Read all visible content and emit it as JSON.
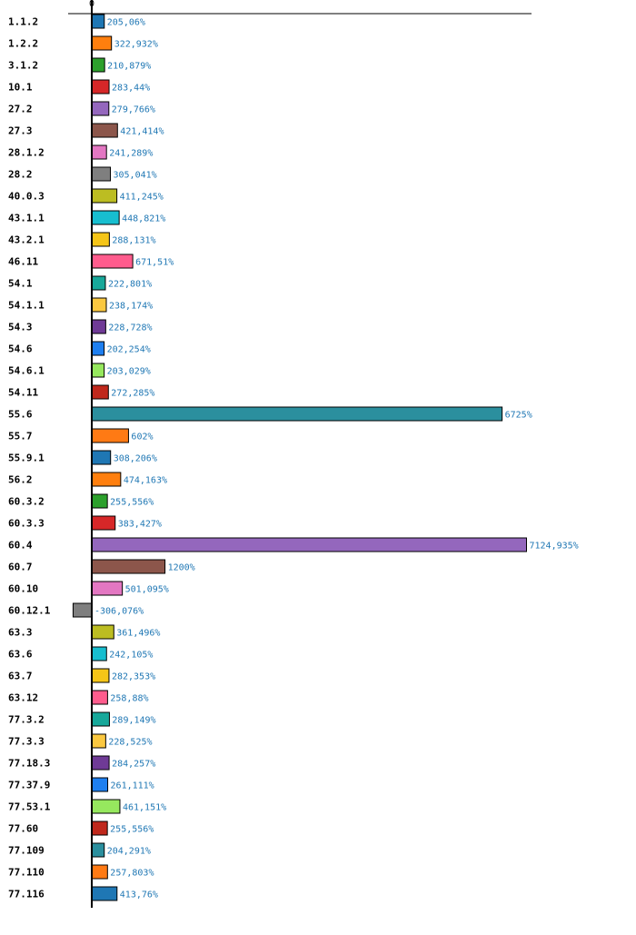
{
  "chart_data": {
    "type": "bar",
    "orientation": "horizontal",
    "title": "",
    "xlabel": "",
    "ylabel": "",
    "xlim": [
      -306.076,
      7124.935
    ],
    "grid": false,
    "legend": "none",
    "ticks": [
      "0"
    ],
    "categories": [
      "1.1.2",
      "1.2.2",
      "3.1.2",
      "10.1",
      "27.2",
      "27.3",
      "28.1.2",
      "28.2",
      "40.0.3",
      "43.1.1",
      "43.2.1",
      "46.11",
      "54.1",
      "54.1.1",
      "54.3",
      "54.6",
      "54.6.1",
      "54.11",
      "55.6",
      "55.7",
      "55.9.1",
      "56.2",
      "60.3.2",
      "60.3.3",
      "60.4",
      "60.7",
      "60.10",
      "60.12.1",
      "63.3",
      "63.6",
      "63.7",
      "63.12",
      "77.3.2",
      "77.3.3",
      "77.18.3",
      "77.37.9",
      "77.53.1",
      "77.60",
      "77.109",
      "77.110",
      "77.116"
    ],
    "values": [
      205.06,
      322.932,
      210.879,
      283.44,
      279.766,
      421.414,
      241.289,
      305.041,
      411.245,
      448.821,
      288.131,
      671.51,
      222.801,
      238.174,
      228.728,
      202.254,
      203.029,
      272.285,
      6725,
      602,
      308.206,
      474.163,
      255.556,
      383.427,
      7124.935,
      1200,
      501.095,
      -306.076,
      361.496,
      242.105,
      282.353,
      258.88,
      289.149,
      228.525,
      284.257,
      261.111,
      461.151,
      255.556,
      204.291,
      257.803,
      413.76
    ],
    "value_labels": [
      "205,06%",
      "322,932%",
      "210,879%",
      "283,44%",
      "279,766%",
      "421,414%",
      "241,289%",
      "305,041%",
      "411,245%",
      "448,821%",
      "288,131%",
      "671,51%",
      "222,801%",
      "238,174%",
      "228,728%",
      "202,254%",
      "203,029%",
      "272,285%",
      "6725%",
      "602%",
      "308,206%",
      "474,163%",
      "255,556%",
      "383,427%",
      "7124,935%",
      "1200%",
      "501,095%",
      "-306,076%",
      "361,496%",
      "242,105%",
      "282,353%",
      "258,88%",
      "289,149%",
      "228,525%",
      "284,257%",
      "261,111%",
      "461,151%",
      "255,556%",
      "204,291%",
      "257,803%",
      "413,76%"
    ],
    "colors": [
      "#1f77b4",
      "#ff7f0e",
      "#2ca02c",
      "#d62728",
      "#9467bd",
      "#8c564b",
      "#e377c2",
      "#7f7f7f",
      "#bcbd22",
      "#17becf",
      "#f5c518",
      "#ff5c8d",
      "#17a89a",
      "#fbc840",
      "#6f3a96",
      "#1e7ff0",
      "#96e85e",
      "#c0281c",
      "#2b8f9e",
      "#ff7a14",
      "#1f77b4",
      "#ff7f0e",
      "#2ca02c",
      "#d62728",
      "#9467bd",
      "#8c564b",
      "#e377c2",
      "#7f7f7f",
      "#bcbd22",
      "#17becf",
      "#f5c518",
      "#ff5c8d",
      "#17a89a",
      "#fbc840",
      "#6f3a96",
      "#1e7ff0",
      "#96e85e",
      "#c0281c",
      "#2b8f9e",
      "#ff7a14",
      "#1f77b4"
    ]
  }
}
